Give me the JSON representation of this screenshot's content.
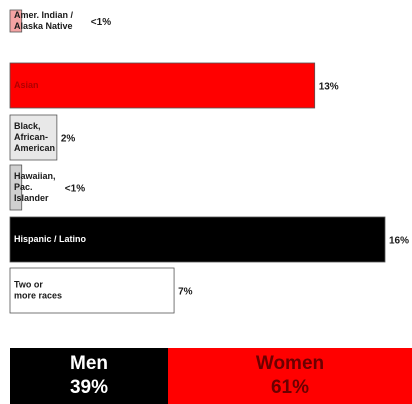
{
  "chart_data": {
    "type": "bar",
    "orientation": "horizontal",
    "categories": [
      [
        "Amer. Indian /",
        "Alaska Native"
      ],
      [
        "Asian"
      ],
      [
        "Black,",
        "African-",
        "American"
      ],
      [
        "Hawaiian,",
        "Pac.",
        "Islander"
      ],
      [
        "Hispanic / Latino"
      ],
      [
        "Two or",
        "more races"
      ]
    ],
    "values": [
      0.5,
      13,
      2,
      0.5,
      16,
      7
    ],
    "value_labels": [
      "<1%",
      "13%",
      "2%",
      "<1%",
      "16%",
      "7%"
    ],
    "bar_colors": [
      "#f4a3a3",
      "#ff0000",
      "#e8e8e8",
      "#d0d0d0",
      "#000000",
      "#ffffff"
    ],
    "label_colors": [
      "#1a1a1a",
      "#b00000",
      "#1a1a1a",
      "#1a1a1a",
      "#ffffff",
      "#1a1a1a"
    ],
    "xlim": [
      0,
      16
    ],
    "grid": false,
    "legend": "none"
  },
  "gender": {
    "men": {
      "label": "Men",
      "value": "39%",
      "color": "#000000"
    },
    "women": {
      "label": "Women",
      "value": "61%",
      "color": "#ff0000"
    }
  }
}
